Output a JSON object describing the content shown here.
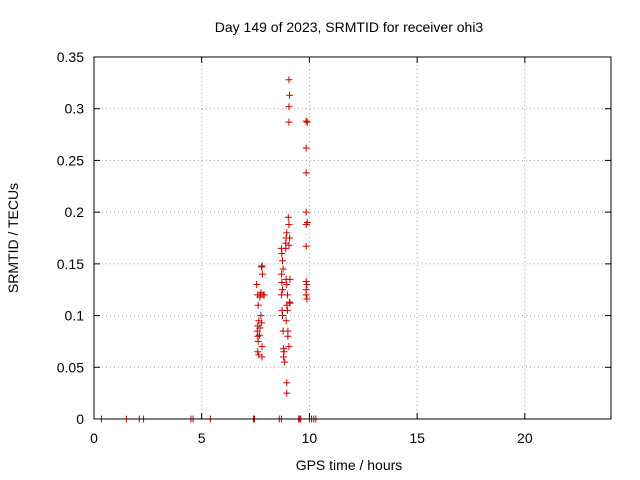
{
  "chart_data": {
    "type": "scatter",
    "title": "Day 149 of 2023, SRMTID for receiver ohi3",
    "xlabel": "GPS time / hours",
    "ylabel": "SRMTID / TECUs",
    "xlim": [
      0,
      24
    ],
    "ylim": [
      0,
      0.35
    ],
    "xticks": [
      0,
      5,
      10,
      15,
      20
    ],
    "xtick_labels": [
      "0",
      "5",
      "10",
      "15",
      "20"
    ],
    "yticks": [
      0,
      0.05,
      0.1,
      0.15,
      0.2,
      0.25,
      0.3,
      0.35
    ],
    "ytick_labels": [
      "0",
      "0.05",
      "0.1",
      "0.15",
      "0.2",
      "0.25",
      "0.3",
      "0.35"
    ],
    "grid": true,
    "marker": "+",
    "color": "#cc0000",
    "series": [
      {
        "name": "SRMTID",
        "points": [
          [
            0.35,
            0
          ],
          [
            1.5,
            0
          ],
          [
            2.1,
            0
          ],
          [
            2.3,
            0
          ],
          [
            4.5,
            0
          ],
          [
            4.6,
            0
          ],
          [
            5.4,
            0
          ],
          [
            7.4,
            0
          ],
          [
            7.45,
            0
          ],
          [
            8.6,
            0
          ],
          [
            8.7,
            0
          ],
          [
            9.5,
            0
          ],
          [
            9.55,
            0
          ],
          [
            9.6,
            0
          ],
          [
            10.0,
            0
          ],
          [
            10.1,
            0
          ],
          [
            10.2,
            0
          ],
          [
            10.3,
            0
          ],
          [
            7.55,
            0.13
          ],
          [
            7.6,
            0.12
          ],
          [
            7.62,
            0.11
          ],
          [
            7.65,
            0.095
          ],
          [
            7.6,
            0.09
          ],
          [
            7.58,
            0.085
          ],
          [
            7.6,
            0.08
          ],
          [
            7.62,
            0.075
          ],
          [
            7.6,
            0.065
          ],
          [
            7.65,
            0.062
          ],
          [
            7.7,
            0.118
          ],
          [
            7.72,
            0.12
          ],
          [
            7.75,
            0.122
          ],
          [
            7.8,
            0.148
          ],
          [
            7.78,
            0.147
          ],
          [
            7.82,
            0.14
          ],
          [
            7.75,
            0.1
          ],
          [
            7.78,
            0.093
          ],
          [
            7.7,
            0.088
          ],
          [
            7.8,
            0.07
          ],
          [
            7.8,
            0.06
          ],
          [
            7.85,
            0.12
          ],
          [
            7.9,
            0.12
          ],
          [
            7.68,
            0.081
          ],
          [
            8.7,
            0.165
          ],
          [
            8.72,
            0.16
          ],
          [
            8.75,
            0.153
          ],
          [
            8.78,
            0.145
          ],
          [
            8.7,
            0.14
          ],
          [
            8.72,
            0.132
          ],
          [
            8.75,
            0.125
          ],
          [
            8.7,
            0.12
          ],
          [
            8.73,
            0.105
          ],
          [
            8.75,
            0.1
          ],
          [
            8.78,
            0.085
          ],
          [
            8.8,
            0.068
          ],
          [
            8.82,
            0.065
          ],
          [
            8.8,
            0.06
          ],
          [
            8.85,
            0.055
          ],
          [
            8.9,
            0.17
          ],
          [
            8.92,
            0.175
          ],
          [
            8.95,
            0.18
          ],
          [
            8.9,
            0.165
          ],
          [
            8.92,
            0.135
          ],
          [
            8.95,
            0.13
          ],
          [
            8.98,
            0.12
          ],
          [
            8.95,
            0.11
          ],
          [
            8.98,
            0.105
          ],
          [
            8.92,
            0.095
          ],
          [
            9.0,
            0.085
          ],
          [
            9.0,
            0.08
          ],
          [
            9.05,
            0.07
          ],
          [
            8.95,
            0.035
          ],
          [
            8.95,
            0.025
          ],
          [
            9.05,
            0.328
          ],
          [
            9.08,
            0.313
          ],
          [
            9.05,
            0.302
          ],
          [
            9.05,
            0.287
          ],
          [
            9.02,
            0.195
          ],
          [
            9.05,
            0.188
          ],
          [
            9.08,
            0.175
          ],
          [
            9.05,
            0.168
          ],
          [
            9.1,
            0.135
          ],
          [
            9.08,
            0.113
          ],
          [
            9.1,
            0.112
          ],
          [
            9.85,
            0.288
          ],
          [
            9.9,
            0.287
          ],
          [
            9.85,
            0.262
          ],
          [
            9.85,
            0.238
          ],
          [
            9.85,
            0.2
          ],
          [
            9.9,
            0.19
          ],
          [
            9.85,
            0.188
          ],
          [
            9.85,
            0.167
          ],
          [
            9.85,
            0.133
          ],
          [
            9.88,
            0.13
          ],
          [
            9.85,
            0.125
          ],
          [
            9.85,
            0.12
          ],
          [
            9.88,
            0.116
          ]
        ]
      }
    ]
  }
}
